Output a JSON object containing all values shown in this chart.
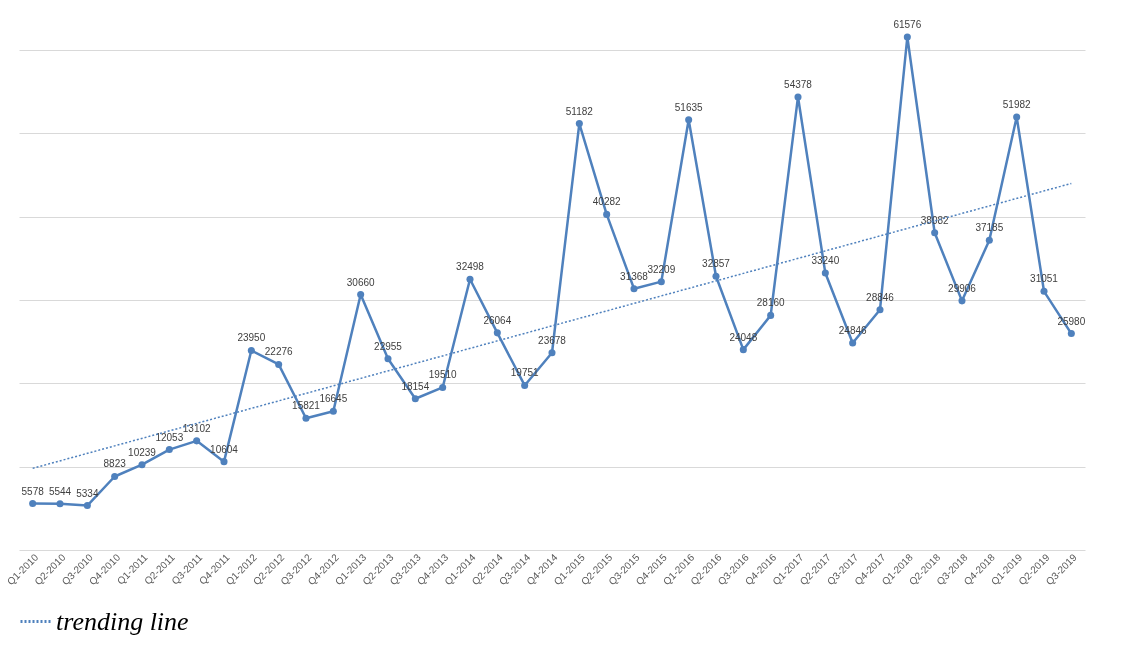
{
  "chart_data": {
    "type": "line",
    "categories": [
      "Q1-2010",
      "Q2-2010",
      "Q3-2010",
      "Q4-2010",
      "Q1-2011",
      "Q2-2011",
      "Q3-2011",
      "Q4-2011",
      "Q1-2012",
      "Q2-2012",
      "Q3-2012",
      "Q4-2012",
      "Q1-2013",
      "Q2-2013",
      "Q3-2013",
      "Q4-2013",
      "Q1-2014",
      "Q2-2014",
      "Q3-2014",
      "Q4-2014",
      "Q1-2015",
      "Q2-2015",
      "Q3-2015",
      "Q4-2015",
      "Q1-2016",
      "Q2-2016",
      "Q3-2016",
      "Q4-2016",
      "Q1-2017",
      "Q2-2017",
      "Q3-2017",
      "Q4-2017",
      "Q1-2018",
      "Q2-2018",
      "Q3-2018",
      "Q4-2018",
      "Q1-2019",
      "Q2-2019",
      "Q3-2019"
    ],
    "series": [
      {
        "color": "#4f81bd",
        "marker": "circle",
        "line_style": "solid",
        "values": [
          5578,
          5544,
          5334,
          8823,
          10239,
          12053,
          13102,
          10604,
          23950,
          22276,
          15821,
          16645,
          30660,
          22955,
          18154,
          19510,
          32498,
          26064,
          19751,
          23678,
          51182,
          40282,
          31368,
          32209,
          51635,
          32857,
          24048,
          28160,
          54378,
          33240,
          24846,
          28846,
          61576,
          38082,
          29906,
          37185,
          51982,
          31051,
          25980
        ],
        "value_labels": [
          "5578",
          "5544",
          "5334",
          "8823",
          "10239",
          "12053",
          "13102",
          "10604",
          "23950",
          "22276",
          "15821",
          "16645",
          "30660",
          "22955",
          "18154",
          "19510",
          "32498",
          "26064",
          "19751",
          "23678",
          "51182",
          "40282",
          "31368",
          "32209",
          "51635",
          "32857",
          "24048",
          "28160",
          "54378",
          "33240",
          "24846",
          "28846",
          "61576",
          "38082",
          "29906",
          "37185",
          "51982",
          "31051",
          "25980"
        ]
      },
      {
        "name": "trending line",
        "type": "line",
        "color": "#4f81bd",
        "line_style": "dotted",
        "marker": "none",
        "x": [
          "Q1-2010",
          "Q3-2019"
        ],
        "values": [
          9800,
          44000
        ]
      }
    ],
    "yticks": [
      {
        "value": 0,
        "label": null
      },
      {
        "value": 10000,
        "label": null
      },
      {
        "value": 20000,
        "label": null
      },
      {
        "value": 30000,
        "label": null
      },
      {
        "value": 40000,
        "label": null
      },
      {
        "value": 50000,
        "label": null
      },
      {
        "value": 60000,
        "label": null
      }
    ],
    "grid": "y",
    "tick_labels": "x",
    "legend": "bottom"
  }
}
